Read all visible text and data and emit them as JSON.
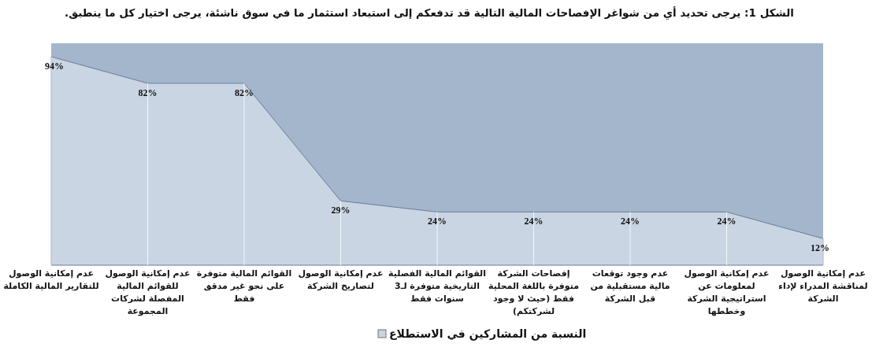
{
  "chart_data": {
    "type": "area",
    "title": "الشكل 1: يرجى تحديد أي من شواغر الإفصاحات المالية التالية قد تدفعكم إلى استبعاد استثمار ما في سوق ناشئة، يرجى اختيار كل ما ينطبق.",
    "categories": [
      "عدم إمكانية الوصول للتقارير المالية الكاملة",
      "عدم إمكانية الوصول للقوائم المالية المفصلة لشركات المجموعة",
      "القوائم المالية متوفرة على نحو غير مدقق فقط",
      "عدم إمكانية الوصول لتصاريخ الشركة",
      "القوائم المالية الفصلية التاريخية متوفرة لـ3 سنوات فقط",
      "إفصاحات الشركة متوفرة باللغة المحلية فقط (حيث لا وجود لشركتكم)",
      "عدم وجود توقعات مالية مستقبلية من قبل الشركة",
      "عدم إمكانية الوصول لمعلومات عن استراتيجية الشركة وخططها",
      "عدم إمكانية الوصول لمناقشة المدراء لإداء الشركة"
    ],
    "series": [
      {
        "name": "النسبة من المشاركين في الاستطلاع",
        "color": "#c9d5e3",
        "values": [
          94,
          82,
          82,
          29,
          24,
          24,
          24,
          24,
          12
        ],
        "value_labels": [
          "94%",
          "82%",
          "82%",
          "29%",
          "24%",
          "24%",
          "24%",
          "24%",
          "12%"
        ]
      }
    ],
    "tick_labels": "x",
    "legend": "bottom"
  }
}
